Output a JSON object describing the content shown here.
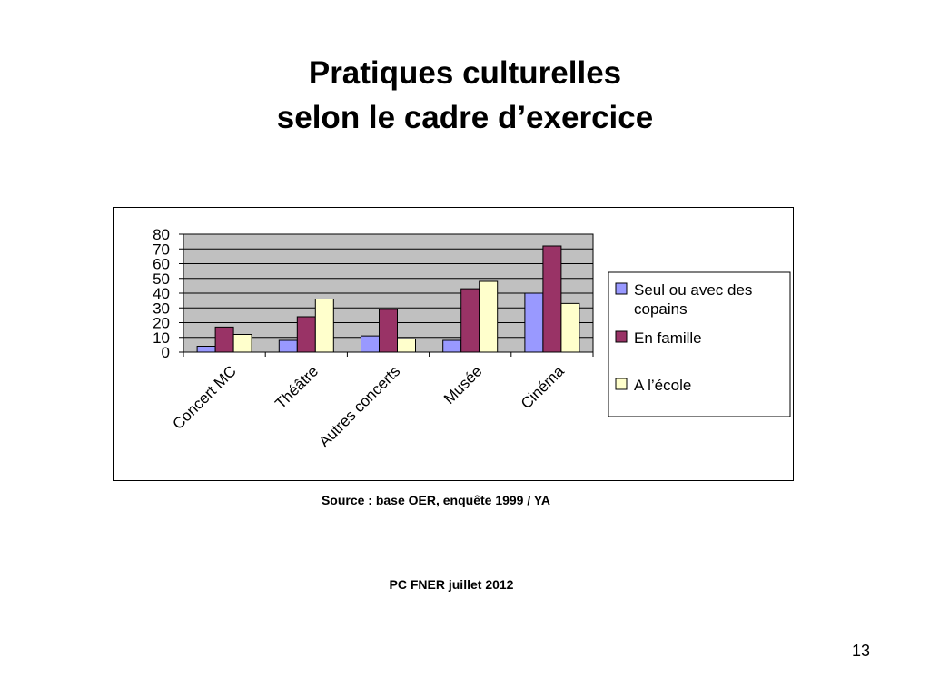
{
  "slide": {
    "title_line1": "Pratiques culturelles",
    "title_line2": "selon le cadre d’exercice",
    "source": "Source : base OER, enquête 1999 / YA",
    "footer": "PC FNER juillet 2012",
    "page_number": "13"
  },
  "chart_data": {
    "type": "bar",
    "title": "",
    "xlabel": "",
    "ylabel": "",
    "categories": [
      "Concert MC",
      "Théâtre",
      "Autres concerts",
      "Musée",
      "Cinéma"
    ],
    "ylim": [
      0,
      80
    ],
    "yticks": [
      0,
      10,
      20,
      30,
      40,
      50,
      60,
      70,
      80
    ],
    "grid": true,
    "legend_position": "right",
    "series": [
      {
        "name": "Seul ou avec des copains",
        "color": "#9999ff",
        "values": [
          4,
          8,
          11,
          8,
          40
        ]
      },
      {
        "name": "En famille",
        "color": "#993366",
        "values": [
          17,
          24,
          29,
          43,
          72
        ]
      },
      {
        "name": "A l’école",
        "color": "#ffffcc",
        "values": [
          12,
          36,
          9,
          48,
          33
        ]
      }
    ],
    "plot_background": "#c0c0c0"
  }
}
